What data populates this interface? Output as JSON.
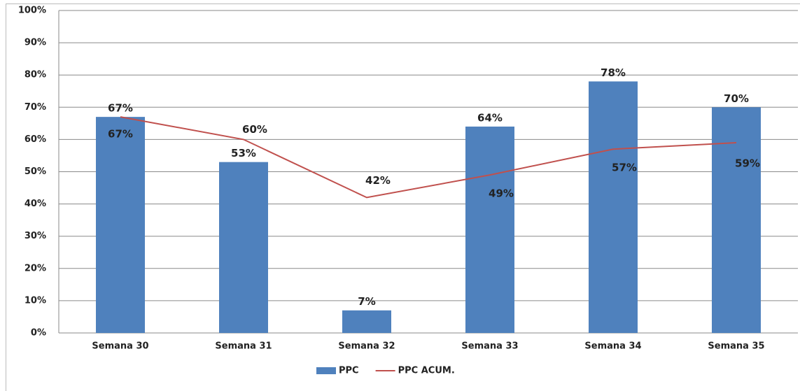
{
  "chart_data": {
    "type": "bar",
    "categories": [
      "Semana 30",
      "Semana 31",
      "Semana 32",
      "Semana 33",
      "Semana 34",
      "Semana 35"
    ],
    "series": [
      {
        "name": "PPC",
        "type": "bar",
        "color": "#4f81bd",
        "values": [
          67,
          53,
          7,
          64,
          78,
          70
        ],
        "value_labels": [
          "67%",
          "53%",
          "7%",
          "64%",
          "78%",
          "70%"
        ]
      },
      {
        "name": "PPC ACUM.",
        "type": "line",
        "color": "#c0504d",
        "values": [
          67,
          60,
          42,
          49,
          57,
          59
        ],
        "value_labels": [
          "67%",
          "60%",
          "42%",
          "49%",
          "57%",
          "59%"
        ]
      }
    ],
    "ylim": [
      0,
      100
    ],
    "yticks": [
      {
        "value": 0,
        "label": "0%"
      },
      {
        "value": 10,
        "label": "10%"
      },
      {
        "value": 20,
        "label": "20%"
      },
      {
        "value": 30,
        "label": "30%"
      },
      {
        "value": 40,
        "label": "40%"
      },
      {
        "value": 50,
        "label": "50%"
      },
      {
        "value": 60,
        "label": "60%"
      },
      {
        "value": 70,
        "label": "70%"
      },
      {
        "value": 80,
        "label": "80%"
      },
      {
        "value": 90,
        "label": "90%"
      },
      {
        "value": 100,
        "label": "100%"
      }
    ],
    "grid": true,
    "legend": "bottom"
  }
}
